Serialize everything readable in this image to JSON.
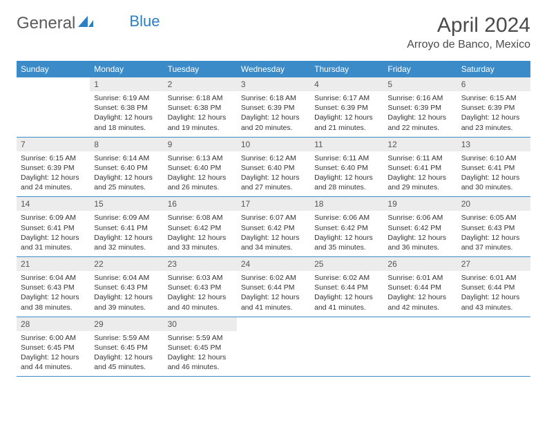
{
  "logo": {
    "part1": "General",
    "part2": "Blue"
  },
  "title": "April 2024",
  "location": "Arroyo de Banco, Mexico",
  "colors": {
    "header_bg": "#3b8bc9",
    "header_fg": "#ffffff",
    "daynum_bg": "#ececec",
    "border": "#3b8bc9",
    "text": "#333333",
    "logo_gray": "#5a5a5a",
    "logo_blue": "#2b7fc3"
  },
  "day_names": [
    "Sunday",
    "Monday",
    "Tuesday",
    "Wednesday",
    "Thursday",
    "Friday",
    "Saturday"
  ],
  "weeks": [
    [
      null,
      {
        "n": "1",
        "sr": "Sunrise: 6:19 AM",
        "ss": "Sunset: 6:38 PM",
        "dl1": "Daylight: 12 hours",
        "dl2": "and 18 minutes."
      },
      {
        "n": "2",
        "sr": "Sunrise: 6:18 AM",
        "ss": "Sunset: 6:38 PM",
        "dl1": "Daylight: 12 hours",
        "dl2": "and 19 minutes."
      },
      {
        "n": "3",
        "sr": "Sunrise: 6:18 AM",
        "ss": "Sunset: 6:39 PM",
        "dl1": "Daylight: 12 hours",
        "dl2": "and 20 minutes."
      },
      {
        "n": "4",
        "sr": "Sunrise: 6:17 AM",
        "ss": "Sunset: 6:39 PM",
        "dl1": "Daylight: 12 hours",
        "dl2": "and 21 minutes."
      },
      {
        "n": "5",
        "sr": "Sunrise: 6:16 AM",
        "ss": "Sunset: 6:39 PM",
        "dl1": "Daylight: 12 hours",
        "dl2": "and 22 minutes."
      },
      {
        "n": "6",
        "sr": "Sunrise: 6:15 AM",
        "ss": "Sunset: 6:39 PM",
        "dl1": "Daylight: 12 hours",
        "dl2": "and 23 minutes."
      }
    ],
    [
      {
        "n": "7",
        "sr": "Sunrise: 6:15 AM",
        "ss": "Sunset: 6:39 PM",
        "dl1": "Daylight: 12 hours",
        "dl2": "and 24 minutes."
      },
      {
        "n": "8",
        "sr": "Sunrise: 6:14 AM",
        "ss": "Sunset: 6:40 PM",
        "dl1": "Daylight: 12 hours",
        "dl2": "and 25 minutes."
      },
      {
        "n": "9",
        "sr": "Sunrise: 6:13 AM",
        "ss": "Sunset: 6:40 PM",
        "dl1": "Daylight: 12 hours",
        "dl2": "and 26 minutes."
      },
      {
        "n": "10",
        "sr": "Sunrise: 6:12 AM",
        "ss": "Sunset: 6:40 PM",
        "dl1": "Daylight: 12 hours",
        "dl2": "and 27 minutes."
      },
      {
        "n": "11",
        "sr": "Sunrise: 6:11 AM",
        "ss": "Sunset: 6:40 PM",
        "dl1": "Daylight: 12 hours",
        "dl2": "and 28 minutes."
      },
      {
        "n": "12",
        "sr": "Sunrise: 6:11 AM",
        "ss": "Sunset: 6:41 PM",
        "dl1": "Daylight: 12 hours",
        "dl2": "and 29 minutes."
      },
      {
        "n": "13",
        "sr": "Sunrise: 6:10 AM",
        "ss": "Sunset: 6:41 PM",
        "dl1": "Daylight: 12 hours",
        "dl2": "and 30 minutes."
      }
    ],
    [
      {
        "n": "14",
        "sr": "Sunrise: 6:09 AM",
        "ss": "Sunset: 6:41 PM",
        "dl1": "Daylight: 12 hours",
        "dl2": "and 31 minutes."
      },
      {
        "n": "15",
        "sr": "Sunrise: 6:09 AM",
        "ss": "Sunset: 6:41 PM",
        "dl1": "Daylight: 12 hours",
        "dl2": "and 32 minutes."
      },
      {
        "n": "16",
        "sr": "Sunrise: 6:08 AM",
        "ss": "Sunset: 6:42 PM",
        "dl1": "Daylight: 12 hours",
        "dl2": "and 33 minutes."
      },
      {
        "n": "17",
        "sr": "Sunrise: 6:07 AM",
        "ss": "Sunset: 6:42 PM",
        "dl1": "Daylight: 12 hours",
        "dl2": "and 34 minutes."
      },
      {
        "n": "18",
        "sr": "Sunrise: 6:06 AM",
        "ss": "Sunset: 6:42 PM",
        "dl1": "Daylight: 12 hours",
        "dl2": "and 35 minutes."
      },
      {
        "n": "19",
        "sr": "Sunrise: 6:06 AM",
        "ss": "Sunset: 6:42 PM",
        "dl1": "Daylight: 12 hours",
        "dl2": "and 36 minutes."
      },
      {
        "n": "20",
        "sr": "Sunrise: 6:05 AM",
        "ss": "Sunset: 6:43 PM",
        "dl1": "Daylight: 12 hours",
        "dl2": "and 37 minutes."
      }
    ],
    [
      {
        "n": "21",
        "sr": "Sunrise: 6:04 AM",
        "ss": "Sunset: 6:43 PM",
        "dl1": "Daylight: 12 hours",
        "dl2": "and 38 minutes."
      },
      {
        "n": "22",
        "sr": "Sunrise: 6:04 AM",
        "ss": "Sunset: 6:43 PM",
        "dl1": "Daylight: 12 hours",
        "dl2": "and 39 minutes."
      },
      {
        "n": "23",
        "sr": "Sunrise: 6:03 AM",
        "ss": "Sunset: 6:43 PM",
        "dl1": "Daylight: 12 hours",
        "dl2": "and 40 minutes."
      },
      {
        "n": "24",
        "sr": "Sunrise: 6:02 AM",
        "ss": "Sunset: 6:44 PM",
        "dl1": "Daylight: 12 hours",
        "dl2": "and 41 minutes."
      },
      {
        "n": "25",
        "sr": "Sunrise: 6:02 AM",
        "ss": "Sunset: 6:44 PM",
        "dl1": "Daylight: 12 hours",
        "dl2": "and 41 minutes."
      },
      {
        "n": "26",
        "sr": "Sunrise: 6:01 AM",
        "ss": "Sunset: 6:44 PM",
        "dl1": "Daylight: 12 hours",
        "dl2": "and 42 minutes."
      },
      {
        "n": "27",
        "sr": "Sunrise: 6:01 AM",
        "ss": "Sunset: 6:44 PM",
        "dl1": "Daylight: 12 hours",
        "dl2": "and 43 minutes."
      }
    ],
    [
      {
        "n": "28",
        "sr": "Sunrise: 6:00 AM",
        "ss": "Sunset: 6:45 PM",
        "dl1": "Daylight: 12 hours",
        "dl2": "and 44 minutes."
      },
      {
        "n": "29",
        "sr": "Sunrise: 5:59 AM",
        "ss": "Sunset: 6:45 PM",
        "dl1": "Daylight: 12 hours",
        "dl2": "and 45 minutes."
      },
      {
        "n": "30",
        "sr": "Sunrise: 5:59 AM",
        "ss": "Sunset: 6:45 PM",
        "dl1": "Daylight: 12 hours",
        "dl2": "and 46 minutes."
      },
      null,
      null,
      null,
      null
    ]
  ]
}
